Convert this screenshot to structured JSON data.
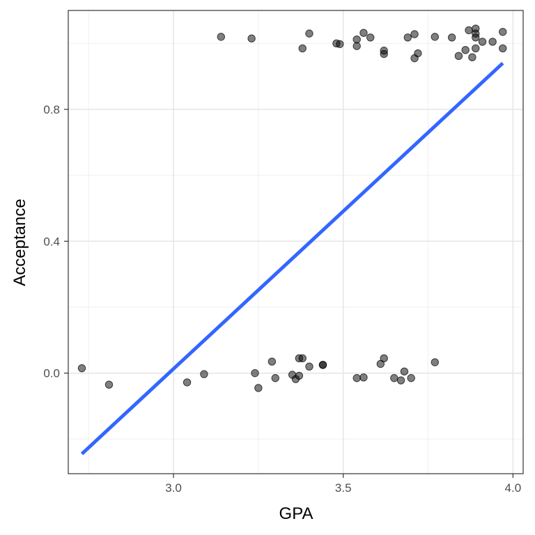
{
  "chart_data": {
    "type": "scatter",
    "title": "",
    "xlabel": "GPA",
    "ylabel": "Acceptance",
    "xlim": [
      2.69,
      4.03
    ],
    "ylim": [
      -0.305,
      1.1
    ],
    "x_ticks": [
      3.0,
      3.5,
      4.0
    ],
    "x_tick_labels": [
      "3.0",
      "3.5",
      "4.0"
    ],
    "y_ticks": [
      0.0,
      0.4,
      0.8
    ],
    "y_tick_labels": [
      "0.0",
      "0.4",
      "0.8"
    ],
    "grid": true,
    "legend": "none",
    "point_color": "#000000",
    "point_opacity": 0.5,
    "line_color": "#3366ff",
    "points": [
      {
        "x": 2.73,
        "y": 0.015
      },
      {
        "x": 2.81,
        "y": -0.035
      },
      {
        "x": 3.04,
        "y": -0.028
      },
      {
        "x": 3.09,
        "y": -0.003
      },
      {
        "x": 3.24,
        "y": 0.0
      },
      {
        "x": 3.25,
        "y": -0.045
      },
      {
        "x": 3.29,
        "y": 0.035
      },
      {
        "x": 3.3,
        "y": -0.015
      },
      {
        "x": 3.35,
        "y": -0.005
      },
      {
        "x": 3.36,
        "y": -0.018
      },
      {
        "x": 3.37,
        "y": -0.008
      },
      {
        "x": 3.37,
        "y": 0.045
      },
      {
        "x": 3.38,
        "y": 0.045
      },
      {
        "x": 3.4,
        "y": 0.02
      },
      {
        "x": 3.44,
        "y": 0.025
      },
      {
        "x": 3.44,
        "y": 0.025
      },
      {
        "x": 3.54,
        "y": -0.015
      },
      {
        "x": 3.56,
        "y": -0.013
      },
      {
        "x": 3.61,
        "y": 0.028
      },
      {
        "x": 3.62,
        "y": 0.045
      },
      {
        "x": 3.65,
        "y": -0.015
      },
      {
        "x": 3.67,
        "y": -0.022
      },
      {
        "x": 3.68,
        "y": 0.005
      },
      {
        "x": 3.7,
        "y": -0.015
      },
      {
        "x": 3.77,
        "y": 0.033
      },
      {
        "x": 3.14,
        "y": 1.02
      },
      {
        "x": 3.23,
        "y": 1.015
      },
      {
        "x": 3.38,
        "y": 0.985
      },
      {
        "x": 3.4,
        "y": 1.03
      },
      {
        "x": 3.48,
        "y": 1.0
      },
      {
        "x": 3.49,
        "y": 0.998
      },
      {
        "x": 3.54,
        "y": 1.012
      },
      {
        "x": 3.54,
        "y": 0.992
      },
      {
        "x": 3.56,
        "y": 1.032
      },
      {
        "x": 3.58,
        "y": 1.018
      },
      {
        "x": 3.62,
        "y": 0.978
      },
      {
        "x": 3.62,
        "y": 0.968
      },
      {
        "x": 3.69,
        "y": 1.018
      },
      {
        "x": 3.71,
        "y": 1.028
      },
      {
        "x": 3.71,
        "y": 0.955
      },
      {
        "x": 3.72,
        "y": 0.97
      },
      {
        "x": 3.77,
        "y": 1.02
      },
      {
        "x": 3.82,
        "y": 1.018
      },
      {
        "x": 3.84,
        "y": 0.962
      },
      {
        "x": 3.86,
        "y": 0.98
      },
      {
        "x": 3.87,
        "y": 1.04
      },
      {
        "x": 3.88,
        "y": 0.958
      },
      {
        "x": 3.89,
        "y": 1.045
      },
      {
        "x": 3.89,
        "y": 1.03
      },
      {
        "x": 3.89,
        "y": 1.018
      },
      {
        "x": 3.89,
        "y": 0.985
      },
      {
        "x": 3.91,
        "y": 1.005
      },
      {
        "x": 3.94,
        "y": 1.005
      },
      {
        "x": 3.97,
        "y": 1.035
      },
      {
        "x": 3.97,
        "y": 0.985
      }
    ],
    "fit_line": {
      "x": [
        2.73,
        3.97
      ],
      "y": [
        -0.245,
        0.94
      ]
    }
  }
}
